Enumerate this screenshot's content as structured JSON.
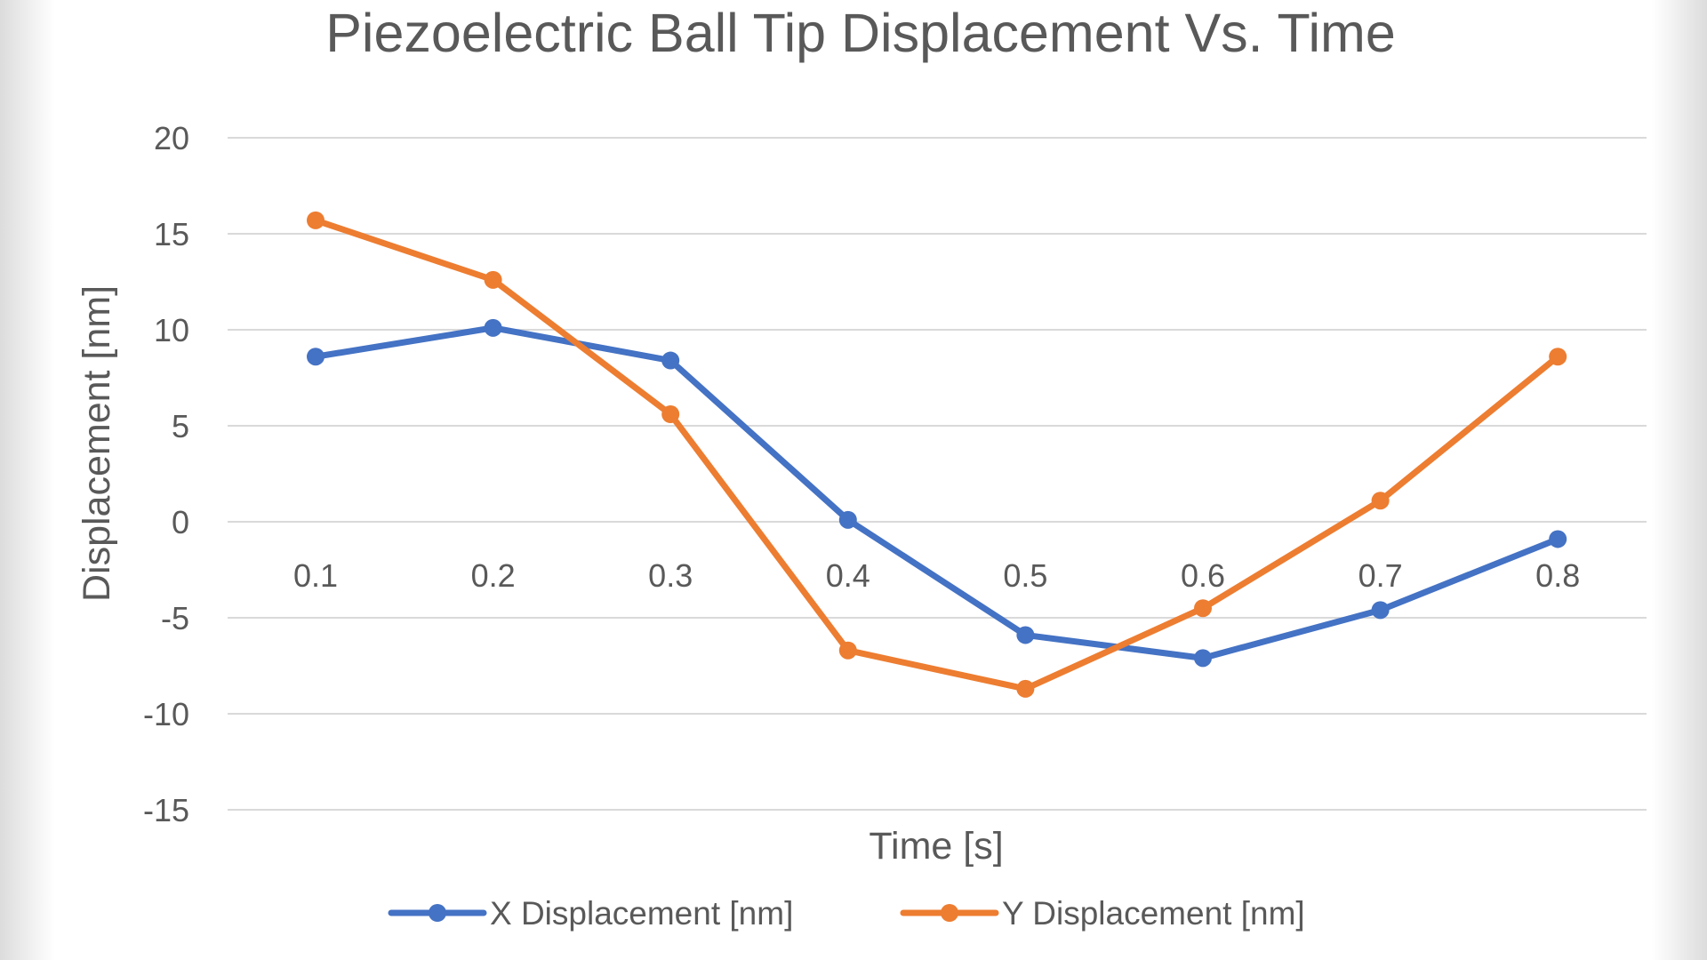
{
  "chart_data": {
    "type": "line",
    "title": "Piezoelectric Ball Tip Displacement Vs. Time",
    "xlabel": "Time [s]",
    "ylabel": "Displacement [nm]",
    "categories": [
      "0.1",
      "0.2",
      "0.3",
      "0.4",
      "0.5",
      "0.6",
      "0.7",
      "0.8"
    ],
    "y_ticks": [
      "20",
      "15",
      "10",
      "5",
      "0",
      "-5",
      "-10",
      "-15"
    ],
    "ylim": [
      -15,
      20
    ],
    "grid": true,
    "legend_position": "bottom",
    "series": [
      {
        "name": "X Displacement [nm]",
        "color": "#4472c4",
        "values": [
          8.6,
          10.1,
          8.4,
          0.1,
          -5.9,
          -7.1,
          -4.6,
          -0.9
        ]
      },
      {
        "name": "Y Displacement [nm]",
        "color": "#ed7d31",
        "values": [
          15.7,
          12.6,
          5.6,
          -6.7,
          -8.7,
          -4.5,
          1.1,
          8.6
        ]
      }
    ]
  }
}
